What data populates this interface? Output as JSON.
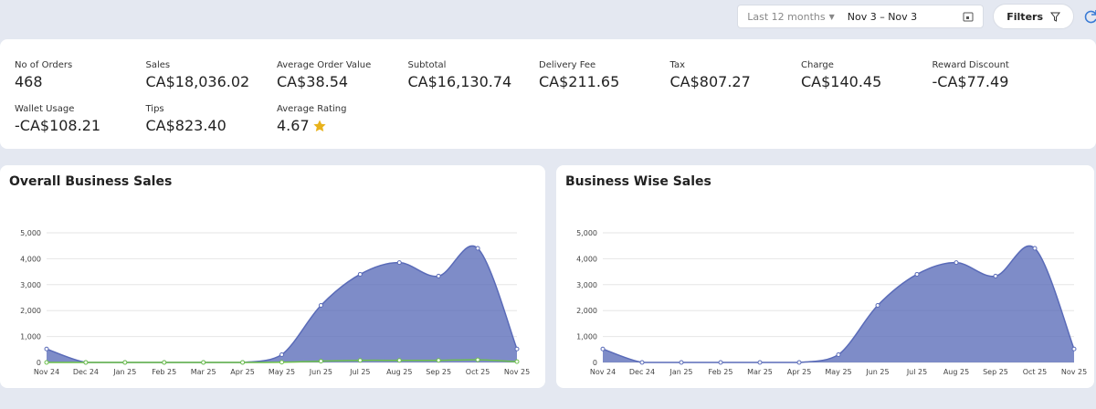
{
  "header": {
    "range_select": "Last 12 months",
    "date_range": "Nov 3 – Nov 3",
    "filters": "Filters"
  },
  "stats": [
    {
      "label": "No of Orders",
      "value": "468"
    },
    {
      "label": "Sales",
      "value": "CA$18,036.02"
    },
    {
      "label": "Average Order Value",
      "value": "CA$38.54"
    },
    {
      "label": "Subtotal",
      "value": "CA$16,130.74"
    },
    {
      "label": "Delivery Fee",
      "value": "CA$211.65"
    },
    {
      "label": "Tax",
      "value": "CA$807.27"
    },
    {
      "label": "Charge",
      "value": "CA$140.45"
    },
    {
      "label": "Reward Discount",
      "value": "-CA$77.49"
    },
    {
      "label": "Wallet Usage",
      "value": "-CA$108.21"
    },
    {
      "label": "Tips",
      "value": "CA$823.40"
    },
    {
      "label": "Average Rating",
      "value": "4.67"
    }
  ],
  "chart_data": [
    {
      "type": "area",
      "title": "Overall Business Sales",
      "categories": [
        "Nov 24",
        "Dec 24",
        "Jan 25",
        "Feb 25",
        "Mar 25",
        "Apr 25",
        "May 25",
        "Jun 25",
        "Jul 25",
        "Aug 25",
        "Sep 25",
        "Oct 25",
        "Nov 25"
      ],
      "series": [
        {
          "color": "#5a6bb8",
          "values": [
            520,
            0,
            0,
            0,
            0,
            0,
            300,
            2200,
            3400,
            3850,
            3330,
            4400,
            520
          ]
        },
        {
          "color": "#6cc04a",
          "values": [
            0,
            0,
            0,
            0,
            0,
            0,
            10,
            50,
            80,
            80,
            80,
            100,
            30
          ]
        }
      ],
      "ylim": [
        0,
        5000
      ],
      "yticks": [
        0,
        {
          "value": 1000,
          "label": "1,000"
        },
        {
          "value": 2000,
          "label": "2,000"
        },
        {
          "value": 3000,
          "label": "3,000"
        },
        {
          "value": 4000,
          "label": "4,000"
        },
        {
          "value": 5000,
          "label": "5,000"
        }
      ],
      "grid": true
    },
    {
      "type": "area",
      "title": "Business Wise Sales",
      "categories": [
        "Nov 24",
        "Dec 24",
        "Jan 25",
        "Feb 25",
        "Mar 25",
        "Apr 25",
        "May 25",
        "Jun 25",
        "Jul 25",
        "Aug 25",
        "Sep 25",
        "Oct 25",
        "Nov 25"
      ],
      "series": [
        {
          "color": "#5a6bb8",
          "values": [
            520,
            0,
            0,
            0,
            0,
            0,
            300,
            2200,
            3400,
            3850,
            3330,
            4400,
            520
          ]
        }
      ],
      "ylim": [
        0,
        5000
      ],
      "yticks": [
        0,
        {
          "value": 1000,
          "label": "1,000"
        },
        {
          "value": 2000,
          "label": "2,000"
        },
        {
          "value": 3000,
          "label": "3,000"
        },
        {
          "value": 4000,
          "label": "4,000"
        },
        {
          "value": 5000,
          "label": "5,000"
        }
      ],
      "grid": true
    }
  ]
}
